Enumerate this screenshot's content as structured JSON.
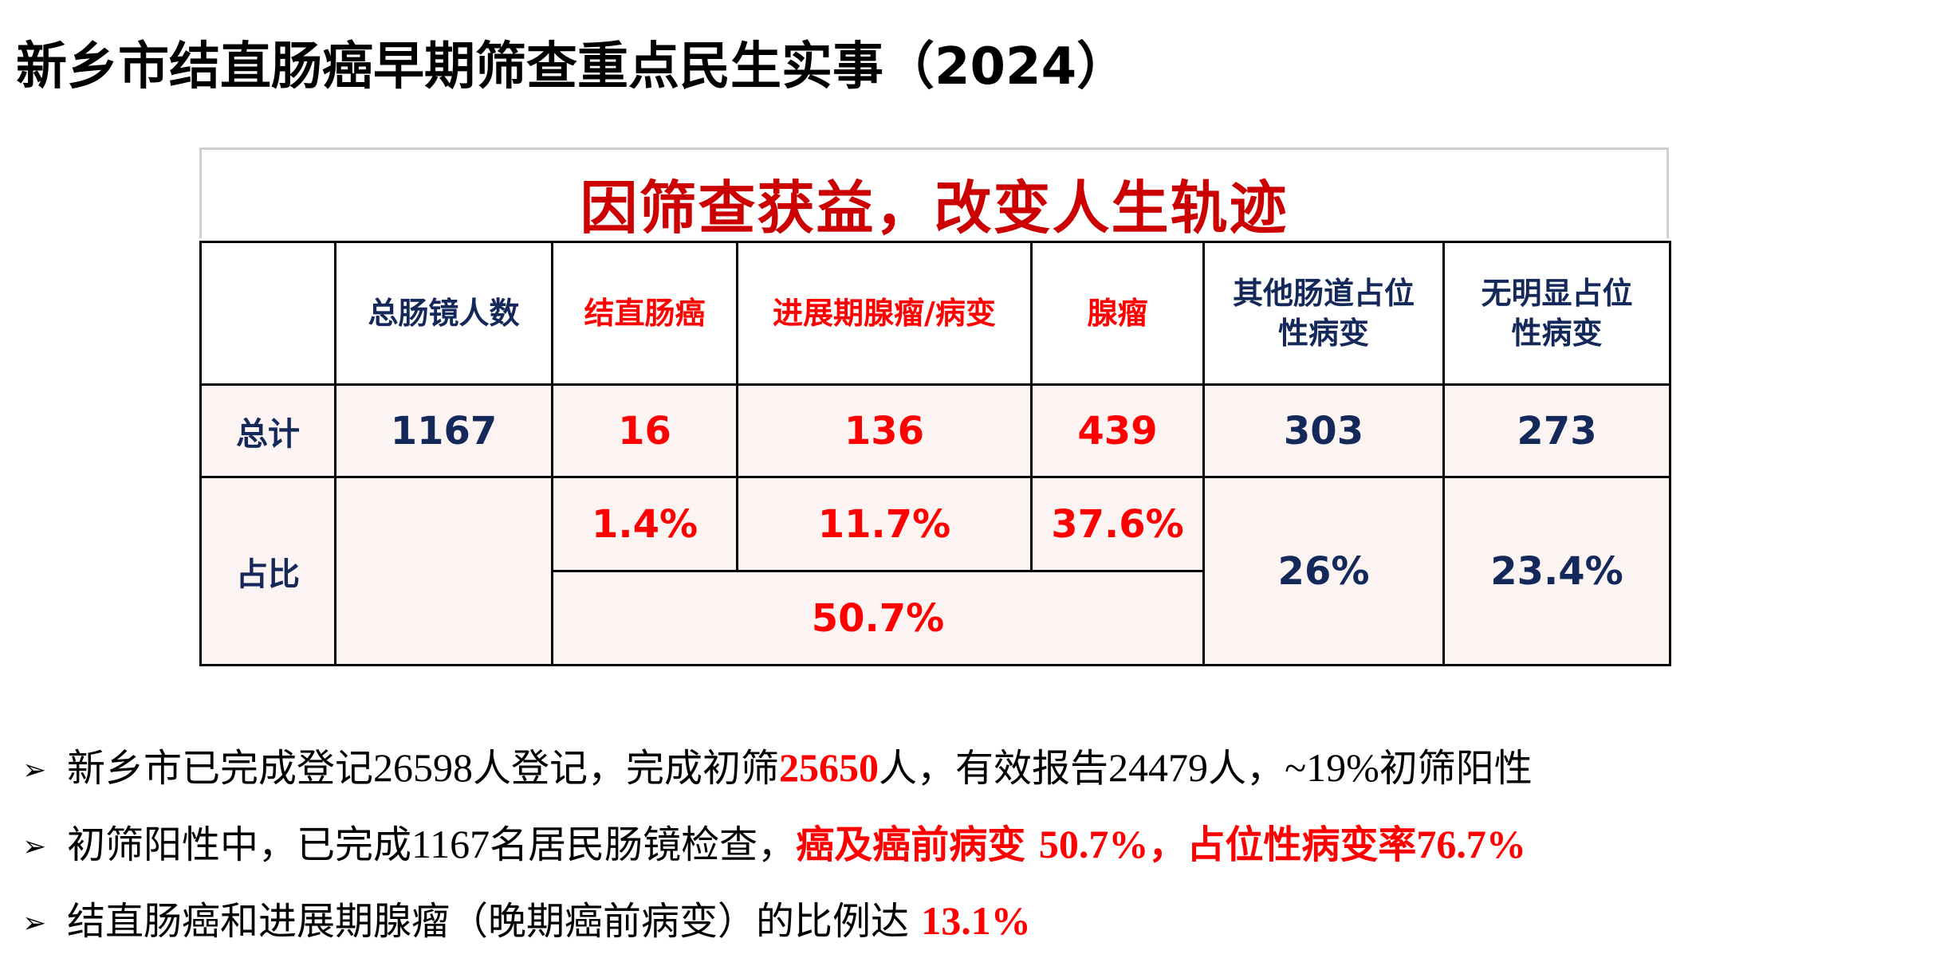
{
  "page_title": "新乡市结直肠癌早期筛查重点民生实事（2024）",
  "banner": "因筛查获益，改变人生轨迹",
  "table": {
    "headers": [
      "总肠镜人数",
      "结直肠癌",
      "进展期腺瘤/病变",
      "腺瘤",
      "其他肠道占位性病变",
      "无明显占位性病变"
    ],
    "total_label": "总计",
    "totals": [
      "1167",
      "16",
      "136",
      "439",
      "303",
      "273"
    ],
    "ratio_label": "占比",
    "ratios": {
      "crc": "1.4%",
      "advanced": "11.7%",
      "adenoma": "37.6%",
      "combined": "50.7%",
      "other": "26%",
      "none": "23.4%"
    }
  },
  "bullets": {
    "b1": {
      "t1": "新乡市已完成登记",
      "n1": "26598",
      "t2": "人登记，完成初筛",
      "n2": "25650",
      "t3": "人，有效报告",
      "n3": "24479",
      "t4": "人，",
      "n4": "~19%",
      "t5": "初筛阳性"
    },
    "b2": {
      "t1": "初筛阳性中，已完成",
      "n1": "1167",
      "t2": "名居民肠镜检查，",
      "h1": "癌及癌前病变 ",
      "n2": "50.7%",
      "h2": "，占位性病变率",
      "n3": "76.7%"
    },
    "b3": {
      "t1": "结直肠癌和进展期腺瘤（晚期癌前病变）的比例达 ",
      "n1": "13.1%"
    }
  },
  "colors": {
    "title": "#000000",
    "banner": "#cc0000",
    "navy_text": "#14285a",
    "red_text": "#ff0000",
    "cell_fill": "#fbf4f3"
  },
  "icons": {
    "bullet": "arrowhead-bullet-icon"
  }
}
